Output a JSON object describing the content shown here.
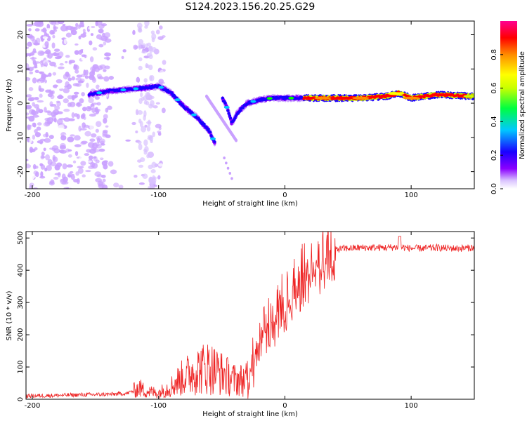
{
  "title": "S124.2023.156.20.25.G29",
  "chart_data": [
    {
      "type": "heatmap",
      "xlabel": "Height of straight line (km)",
      "ylabel": "Frequency (Hz)",
      "xlim": [
        -205,
        150
      ],
      "ylim": [
        -25,
        24
      ],
      "xticks": [
        -200,
        -100,
        0,
        100
      ],
      "yticks": [
        -20,
        -10,
        0,
        10,
        20
      ],
      "colorbar": {
        "label": "Normalized spectral amplitude",
        "range": [
          0,
          1
        ],
        "ticks": [
          0.0,
          0.2,
          0.4,
          0.6,
          0.8
        ],
        "colors": [
          "#ffffff",
          "#c9a0ff",
          "#8a00ff",
          "#1a00ff",
          "#00c8ff",
          "#00ff00",
          "#c8ff00",
          "#ffff00",
          "#ff8c00",
          "#ff0000",
          "#ff0090"
        ]
      },
      "ridge": {
        "description_points_x": [
          -155,
          -140,
          -125,
          -110,
          -100,
          -90,
          -80,
          -70,
          -60,
          -55,
          -50,
          -45,
          -42,
          -38,
          -30,
          -20,
          -10,
          0,
          20,
          40,
          60,
          80,
          90,
          100,
          120,
          150
        ],
        "description_points_y": [
          2.5,
          3.5,
          4,
          4.5,
          5,
          3,
          -1,
          -4,
          -8,
          -12,
          2,
          -2,
          -6,
          -3,
          0,
          1,
          1.5,
          1.5,
          1.5,
          1.5,
          1.5,
          2,
          3,
          1.5,
          2.5,
          2
        ]
      }
    },
    {
      "type": "line",
      "xlabel": "Height of straight line (km)",
      "ylabel": "SNR (10 * v/v)",
      "xlim": [
        -205,
        150
      ],
      "ylim": [
        0,
        520
      ],
      "xticks": [
        -200,
        -100,
        0,
        100
      ],
      "yticks": [
        0,
        100,
        200,
        300,
        400,
        500
      ],
      "color": "#ee2222",
      "series": [
        {
          "x": [
            -205,
            -180,
            -160,
            -140,
            -125,
            -115,
            -110,
            -100,
            -90,
            -80,
            -70,
            -60,
            -50,
            -40,
            -30,
            -25,
            -20,
            -10,
            0,
            10,
            20,
            30,
            40,
            50,
            60,
            70,
            80,
            90,
            100,
            110,
            120,
            130,
            140,
            150
          ],
          "values": [
            10,
            12,
            14,
            15,
            18,
            35,
            25,
            20,
            40,
            70,
            90,
            100,
            80,
            60,
            60,
            150,
            220,
            260,
            320,
            380,
            420,
            450,
            465,
            468,
            470,
            470,
            470,
            472,
            468,
            468,
            470,
            468,
            468,
            470
          ]
        }
      ]
    }
  ]
}
